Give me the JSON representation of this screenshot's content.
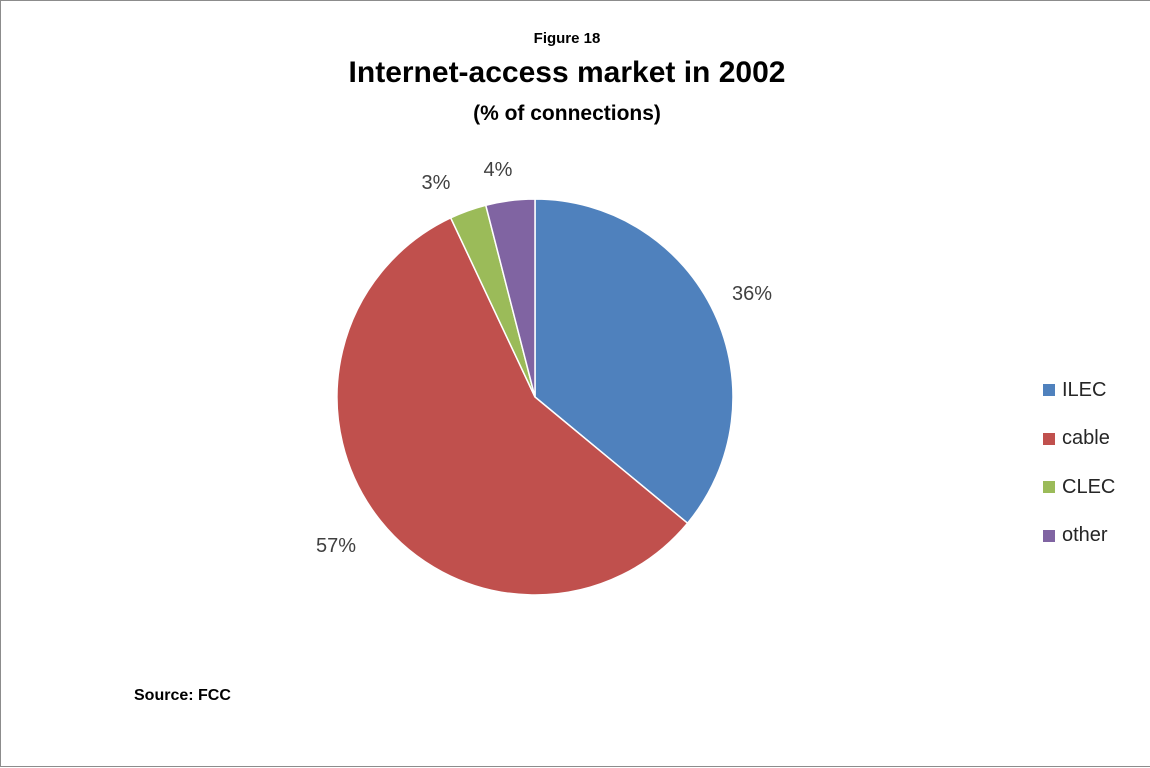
{
  "figure_label": "Figure 18",
  "source": "Source: FCC",
  "chart_data": {
    "type": "pie",
    "title": "Internet-access market in 2002",
    "subtitle": "(% of connections)",
    "unit": "%",
    "categories": [
      "ILEC",
      "cable",
      "CLEC",
      "other"
    ],
    "values": [
      36,
      57,
      3,
      4
    ],
    "data_labels": [
      "36%",
      "57%",
      "3%",
      "4%"
    ],
    "colors": [
      "#4f81bd",
      "#c0504d",
      "#9bbb59",
      "#8064a2"
    ],
    "legend_position": "right",
    "start_angle": "top, clockwise"
  }
}
